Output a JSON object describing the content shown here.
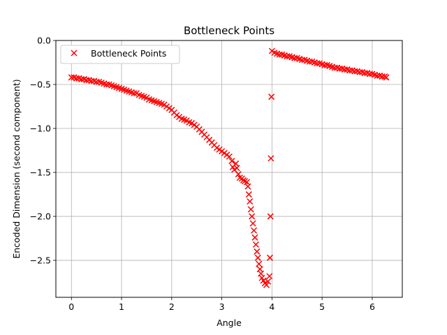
{
  "chart_data": {
    "type": "scatter",
    "title": "Bottleneck Points",
    "xlabel": "Angle",
    "ylabel": "Encoded Dimension (second component)",
    "xlim": [
      -0.31,
      6.6
    ],
    "ylim": [
      -2.92,
      0.0
    ],
    "xticks": [
      0,
      1,
      2,
      3,
      4,
      5,
      6
    ],
    "xtick_labels": [
      "0",
      "1",
      "2",
      "3",
      "4",
      "5",
      "6"
    ],
    "yticks": [
      0.0,
      -0.5,
      -1.0,
      -1.5,
      -2.0,
      -2.5
    ],
    "ytick_labels": [
      "0.0",
      "−0.5",
      "−1.0",
      "−1.5",
      "−2.0",
      "−2.5"
    ],
    "grid": true,
    "legend_position": "top-left",
    "marker": "x",
    "color": "#ff0000",
    "series": [
      {
        "name": "Bottleneck Points",
        "points": [
          [
            0.0,
            -0.42
          ],
          [
            0.05,
            -0.42
          ],
          [
            0.1,
            -0.43
          ],
          [
            0.15,
            -0.43
          ],
          [
            0.2,
            -0.44
          ],
          [
            0.25,
            -0.44
          ],
          [
            0.3,
            -0.45
          ],
          [
            0.35,
            -0.45
          ],
          [
            0.4,
            -0.46
          ],
          [
            0.45,
            -0.46
          ],
          [
            0.5,
            -0.47
          ],
          [
            0.55,
            -0.47
          ],
          [
            0.6,
            -0.48
          ],
          [
            0.65,
            -0.49
          ],
          [
            0.7,
            -0.5
          ],
          [
            0.75,
            -0.5
          ],
          [
            0.8,
            -0.51
          ],
          [
            0.85,
            -0.52
          ],
          [
            0.9,
            -0.53
          ],
          [
            0.95,
            -0.54
          ],
          [
            1.0,
            -0.55
          ],
          [
            1.05,
            -0.56
          ],
          [
            1.1,
            -0.57
          ],
          [
            1.15,
            -0.58
          ],
          [
            1.2,
            -0.59
          ],
          [
            1.25,
            -0.6
          ],
          [
            1.3,
            -0.6
          ],
          [
            1.35,
            -0.62
          ],
          [
            1.4,
            -0.63
          ],
          [
            1.45,
            -0.64
          ],
          [
            1.5,
            -0.65
          ],
          [
            1.55,
            -0.67
          ],
          [
            1.6,
            -0.68
          ],
          [
            1.65,
            -0.69
          ],
          [
            1.7,
            -0.7
          ],
          [
            1.75,
            -0.71
          ],
          [
            1.8,
            -0.72
          ],
          [
            1.85,
            -0.73
          ],
          [
            1.9,
            -0.75
          ],
          [
            1.95,
            -0.77
          ],
          [
            2.0,
            -0.79
          ],
          [
            2.05,
            -0.82
          ],
          [
            2.1,
            -0.85
          ],
          [
            2.15,
            -0.87
          ],
          [
            2.2,
            -0.89
          ],
          [
            2.25,
            -0.9
          ],
          [
            2.3,
            -0.91
          ],
          [
            2.35,
            -0.93
          ],
          [
            2.4,
            -0.94
          ],
          [
            2.45,
            -0.96
          ],
          [
            2.5,
            -0.98
          ],
          [
            2.55,
            -1.01
          ],
          [
            2.6,
            -1.04
          ],
          [
            2.65,
            -1.07
          ],
          [
            2.7,
            -1.1
          ],
          [
            2.75,
            -1.13
          ],
          [
            2.8,
            -1.16
          ],
          [
            2.85,
            -1.19
          ],
          [
            2.9,
            -1.22
          ],
          [
            2.95,
            -1.24
          ],
          [
            3.0,
            -1.26
          ],
          [
            3.05,
            -1.28
          ],
          [
            3.1,
            -1.3
          ],
          [
            3.15,
            -1.32
          ],
          [
            3.2,
            -1.37
          ],
          [
            3.22,
            -1.44
          ],
          [
            3.25,
            -1.47
          ],
          [
            3.28,
            -1.4
          ],
          [
            3.3,
            -1.45
          ],
          [
            3.33,
            -1.52
          ],
          [
            3.36,
            -1.56
          ],
          [
            3.4,
            -1.57
          ],
          [
            3.43,
            -1.59
          ],
          [
            3.46,
            -1.6
          ],
          [
            3.5,
            -1.61
          ],
          [
            3.52,
            -1.66
          ],
          [
            3.54,
            -1.75
          ],
          [
            3.56,
            -1.83
          ],
          [
            3.58,
            -1.92
          ],
          [
            3.6,
            -2.0
          ],
          [
            3.62,
            -2.08
          ],
          [
            3.64,
            -2.16
          ],
          [
            3.66,
            -2.24
          ],
          [
            3.68,
            -2.32
          ],
          [
            3.7,
            -2.4
          ],
          [
            3.72,
            -2.47
          ],
          [
            3.74,
            -2.54
          ],
          [
            3.76,
            -2.6
          ],
          [
            3.78,
            -2.65
          ],
          [
            3.8,
            -2.7
          ],
          [
            3.83,
            -2.73
          ],
          [
            3.86,
            -2.76
          ],
          [
            3.89,
            -2.78
          ],
          [
            3.92,
            -2.74
          ],
          [
            3.95,
            -2.68
          ],
          [
            3.96,
            -2.47
          ],
          [
            3.97,
            -2.0
          ],
          [
            3.98,
            -1.34
          ],
          [
            3.99,
            -0.64
          ],
          [
            4.0,
            -0.12
          ],
          [
            4.05,
            -0.14
          ],
          [
            4.1,
            -0.15
          ],
          [
            4.15,
            -0.16
          ],
          [
            4.2,
            -0.16
          ],
          [
            4.25,
            -0.17
          ],
          [
            4.3,
            -0.18
          ],
          [
            4.35,
            -0.18
          ],
          [
            4.4,
            -0.19
          ],
          [
            4.45,
            -0.2
          ],
          [
            4.5,
            -0.2
          ],
          [
            4.55,
            -0.21
          ],
          [
            4.6,
            -0.22
          ],
          [
            4.65,
            -0.22
          ],
          [
            4.7,
            -0.23
          ],
          [
            4.75,
            -0.24
          ],
          [
            4.8,
            -0.24
          ],
          [
            4.85,
            -0.25
          ],
          [
            4.9,
            -0.26
          ],
          [
            4.95,
            -0.26
          ],
          [
            5.0,
            -0.27
          ],
          [
            5.05,
            -0.28
          ],
          [
            5.1,
            -0.28
          ],
          [
            5.15,
            -0.29
          ],
          [
            5.2,
            -0.3
          ],
          [
            5.25,
            -0.31
          ],
          [
            5.3,
            -0.31
          ],
          [
            5.35,
            -0.32
          ],
          [
            5.4,
            -0.32
          ],
          [
            5.45,
            -0.33
          ],
          [
            5.5,
            -0.33
          ],
          [
            5.55,
            -0.34
          ],
          [
            5.6,
            -0.34
          ],
          [
            5.65,
            -0.35
          ],
          [
            5.7,
            -0.35
          ],
          [
            5.75,
            -0.36
          ],
          [
            5.8,
            -0.36
          ],
          [
            5.85,
            -0.37
          ],
          [
            5.9,
            -0.37
          ],
          [
            5.95,
            -0.38
          ],
          [
            6.0,
            -0.38
          ],
          [
            6.05,
            -0.39
          ],
          [
            6.1,
            -0.4
          ],
          [
            6.15,
            -0.4
          ],
          [
            6.2,
            -0.41
          ],
          [
            6.25,
            -0.41
          ],
          [
            6.28,
            -0.42
          ]
        ]
      }
    ]
  }
}
